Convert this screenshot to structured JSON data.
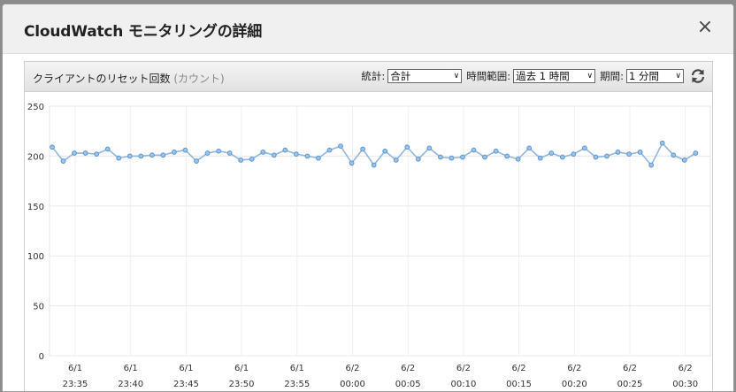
{
  "modal": {
    "title": "CloudWatch モニタリングの詳細",
    "close_label": "×"
  },
  "panel": {
    "title": "クライアントのリセット回数",
    "unit": "(カウント)",
    "stat_label": "統計:",
    "stat_value": "合計",
    "range_label": "時間範囲:",
    "range_value": "過去 1 時間",
    "period_label": "期間:",
    "period_value": "1 分間",
    "dropdown_arrow": "∨"
  },
  "chart_data": {
    "type": "line",
    "yticks": [
      0,
      50,
      100,
      150,
      200,
      250
    ],
    "ylim": [
      0,
      250
    ],
    "xtick_labels": [
      {
        "date": "6/1",
        "time": "23:35"
      },
      {
        "date": "6/1",
        "time": "23:40"
      },
      {
        "date": "6/1",
        "time": "23:45"
      },
      {
        "date": "6/1",
        "time": "23:50"
      },
      {
        "date": "6/1",
        "time": "23:55"
      },
      {
        "date": "6/2",
        "time": "00:00"
      },
      {
        "date": "6/2",
        "time": "00:05"
      },
      {
        "date": "6/2",
        "time": "00:10"
      },
      {
        "date": "6/2",
        "time": "00:15"
      },
      {
        "date": "6/2",
        "time": "00:20"
      },
      {
        "date": "6/2",
        "time": "00:25"
      },
      {
        "date": "6/2",
        "time": "00:30"
      }
    ],
    "values": [
      209,
      195,
      203,
      203,
      202,
      207,
      198,
      200,
      200,
      201,
      201,
      204,
      206,
      195,
      203,
      205,
      203,
      196,
      197,
      204,
      201,
      206,
      202,
      200,
      198,
      206,
      210,
      193,
      207,
      191,
      205,
      196,
      209,
      197,
      208,
      199,
      198,
      199,
      206,
      199,
      205,
      200,
      197,
      208,
      198,
      203,
      199,
      202,
      208,
      199,
      200,
      204,
      202,
      204,
      191,
      213,
      201,
      196,
      203
    ],
    "line_color": "#8fb7e0",
    "point_color": "#5b95cf"
  }
}
